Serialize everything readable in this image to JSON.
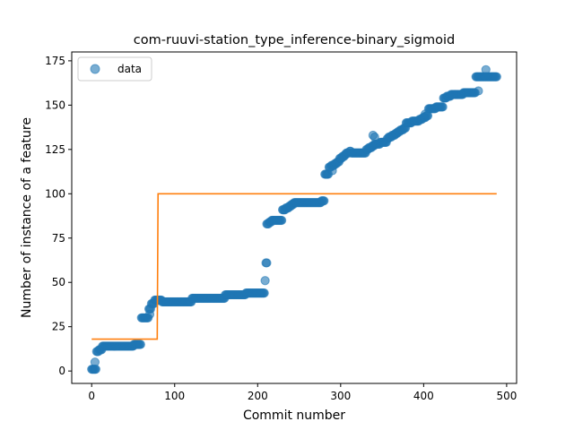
{
  "chart_data": {
    "type": "scatter",
    "title": "com-ruuvi-station_type_inference-binary_sigmoid",
    "xlabel": "Commit number",
    "ylabel": "Number of instance of a feature",
    "xlim": [
      -24,
      512
    ],
    "ylim": [
      -7,
      180
    ],
    "xticks": [
      0,
      100,
      200,
      300,
      400,
      500
    ],
    "yticks": [
      0,
      25,
      50,
      75,
      100,
      125,
      150,
      175
    ],
    "grid": false,
    "legend": {
      "position": "top-left",
      "entries": [
        "data"
      ]
    },
    "colors": {
      "points": "#1f77b4",
      "line": "#ff7f0e"
    },
    "series": [
      {
        "name": "data",
        "kind": "scatter",
        "segments": [
          {
            "x0": 0,
            "x1": 5,
            "y0": 1,
            "y1": 1
          },
          {
            "x0": 6,
            "x1": 8,
            "y0": 11,
            "y1": 11
          },
          {
            "x0": 9,
            "x1": 12,
            "y0": 12,
            "y1": 12
          },
          {
            "x0": 13,
            "x1": 50,
            "y0": 14,
            "y1": 14
          },
          {
            "x0": 51,
            "x1": 59,
            "y0": 15,
            "y1": 15
          },
          {
            "x0": 60,
            "x1": 68,
            "y0": 30,
            "y1": 30
          },
          {
            "x0": 69,
            "x1": 71,
            "y0": 35,
            "y1": 35
          },
          {
            "x0": 72,
            "x1": 75,
            "y0": 38,
            "y1": 38
          },
          {
            "x0": 76,
            "x1": 84,
            "y0": 40,
            "y1": 40
          },
          {
            "x0": 85,
            "x1": 120,
            "y0": 39,
            "y1": 39
          },
          {
            "x0": 121,
            "x1": 160,
            "y0": 41,
            "y1": 41
          },
          {
            "x0": 161,
            "x1": 185,
            "y0": 43,
            "y1": 43
          },
          {
            "x0": 186,
            "x1": 208,
            "y0": 44,
            "y1": 44
          },
          {
            "x0": 211,
            "x1": 216,
            "y0": 83,
            "y1": 84
          },
          {
            "x0": 217,
            "x1": 229,
            "y0": 85,
            "y1": 85
          },
          {
            "x0": 230,
            "x1": 237,
            "y0": 91,
            "y1": 92
          },
          {
            "x0": 238,
            "x1": 243,
            "y0": 93,
            "y1": 94
          },
          {
            "x0": 244,
            "x1": 276,
            "y0": 95,
            "y1": 95
          },
          {
            "x0": 277,
            "x1": 280,
            "y0": 96,
            "y1": 96
          },
          {
            "x0": 281,
            "x1": 285,
            "y0": 111,
            "y1": 111
          },
          {
            "x0": 286,
            "x1": 292,
            "y0": 115,
            "y1": 116
          },
          {
            "x0": 293,
            "x1": 298,
            "y0": 117,
            "y1": 118
          },
          {
            "x0": 299,
            "x1": 304,
            "y0": 120,
            "y1": 121
          },
          {
            "x0": 305,
            "x1": 312,
            "y0": 122,
            "y1": 124
          },
          {
            "x0": 313,
            "x1": 330,
            "y0": 123,
            "y1": 123
          },
          {
            "x0": 331,
            "x1": 340,
            "y0": 125,
            "y1": 127
          },
          {
            "x0": 341,
            "x1": 355,
            "y0": 128,
            "y1": 129
          },
          {
            "x0": 356,
            "x1": 368,
            "y0": 131,
            "y1": 134
          },
          {
            "x0": 369,
            "x1": 378,
            "y0": 135,
            "y1": 137
          },
          {
            "x0": 379,
            "x1": 392,
            "y0": 140,
            "y1": 141
          },
          {
            "x0": 393,
            "x1": 405,
            "y0": 141,
            "y1": 144
          },
          {
            "x0": 406,
            "x1": 423,
            "y0": 148,
            "y1": 149
          },
          {
            "x0": 424,
            "x1": 432,
            "y0": 154,
            "y1": 155
          },
          {
            "x0": 433,
            "x1": 462,
            "y0": 156,
            "y1": 157
          },
          {
            "x0": 463,
            "x1": 488,
            "y0": 166,
            "y1": 166
          }
        ],
        "points": [
          {
            "x": 4,
            "y": 5
          },
          {
            "x": 70,
            "y": 32
          },
          {
            "x": 209,
            "y": 51
          },
          {
            "x": 210,
            "y": 61
          },
          {
            "x": 211,
            "y": 61
          },
          {
            "x": 339,
            "y": 133
          },
          {
            "x": 341,
            "y": 132
          },
          {
            "x": 475,
            "y": 170
          },
          {
            "x": 466,
            "y": 158
          },
          {
            "x": 402,
            "y": 145
          },
          {
            "x": 290,
            "y": 113
          }
        ]
      },
      {
        "name": "",
        "kind": "step-line",
        "x": [
          0,
          79,
          80,
          488
        ],
        "y": [
          18,
          18,
          100,
          100
        ]
      }
    ]
  }
}
